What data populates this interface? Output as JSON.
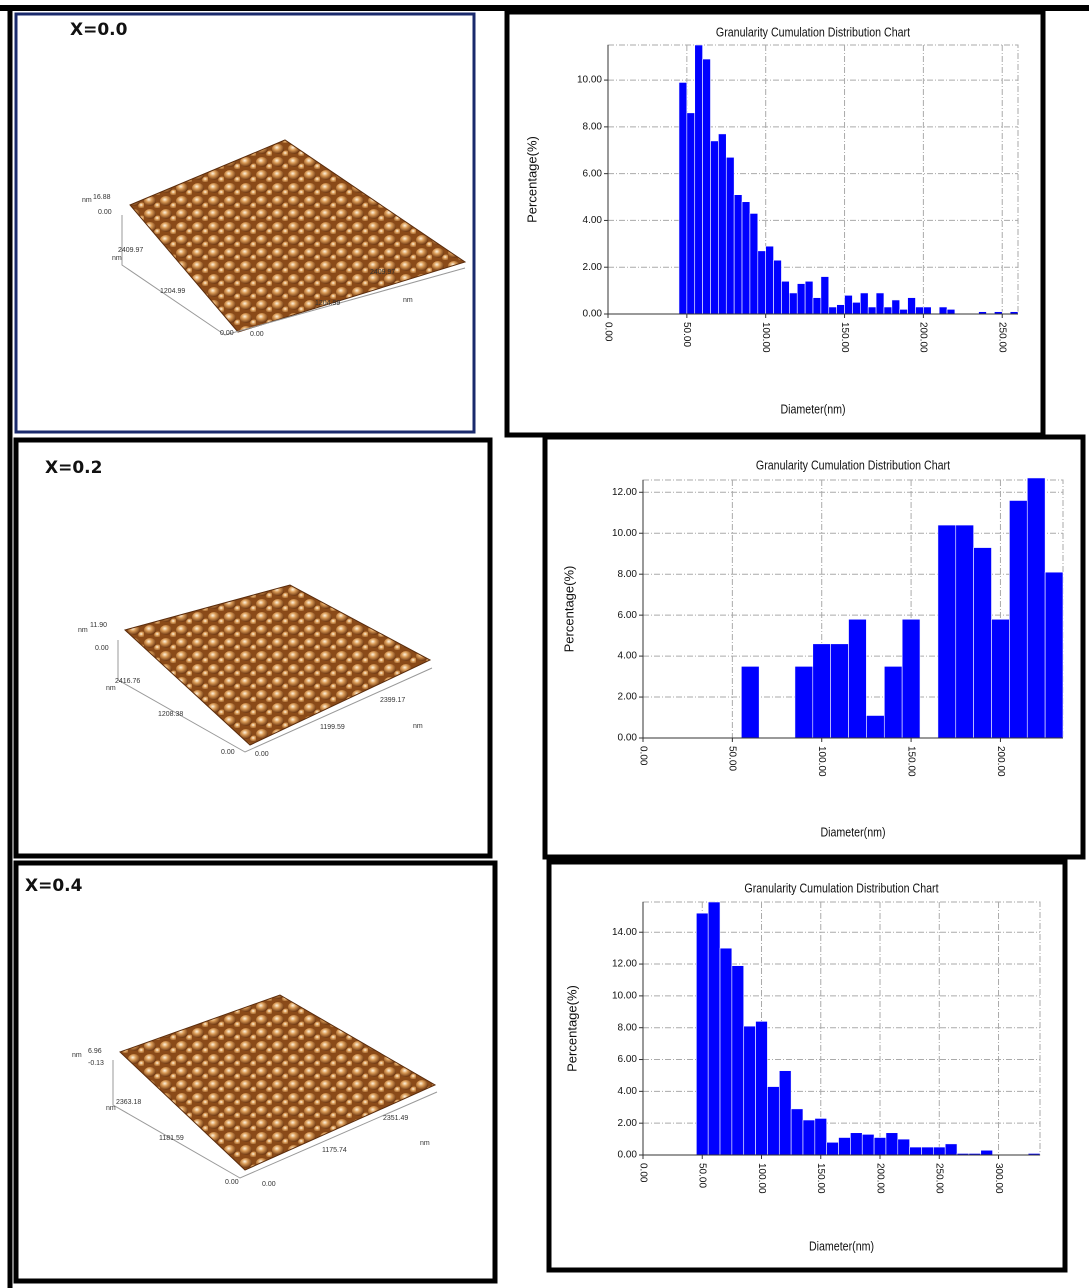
{
  "panels": [
    {
      "label": "X=0.0",
      "afm_labels": [
        "nm",
        "16.88",
        "0.00",
        "2409.97",
        "nm",
        "1204.99",
        "0.00",
        "0.00",
        "1204.99",
        "2409.97",
        "nm"
      ]
    },
    {
      "label": "X=0.2",
      "afm_labels": [
        "nm",
        "11.90",
        "0.00",
        "2416.76",
        "nm",
        "1208.38",
        "0.00",
        "0.00",
        "1199.59",
        "2399.17",
        "nm"
      ]
    },
    {
      "label": "X=0.4",
      "afm_labels": [
        "nm",
        "6.96",
        "-0.13",
        "2363.18",
        "nm",
        "1181.59",
        "0.00",
        "0.00",
        "1175.74",
        "2351.49",
        "nm"
      ]
    }
  ],
  "chart_data": [
    {
      "type": "histogram",
      "title": "Granularity Cumulation Distribution  Chart",
      "xlabel": "Diameter(nm)",
      "ylabel": "Percentage(%)",
      "color": "#0000ff",
      "grid": true,
      "bins": [
        45,
        50,
        55,
        60,
        65,
        70,
        75,
        80,
        85,
        90,
        95,
        100,
        105,
        110,
        115,
        120,
        125,
        130,
        135,
        140,
        145,
        150,
        155,
        160,
        165,
        170,
        175,
        180,
        185,
        190,
        195,
        200,
        205,
        210,
        215,
        220,
        225,
        230,
        235,
        240,
        245,
        250,
        255,
        260
      ],
      "values": [
        9.9,
        8.6,
        11.5,
        10.9,
        7.4,
        7.7,
        6.7,
        5.1,
        4.8,
        4.3,
        2.7,
        2.9,
        2.3,
        1.4,
        0.9,
        1.3,
        1.4,
        0.7,
        1.6,
        0.3,
        0.4,
        0.8,
        0.5,
        0.9,
        0.3,
        0.9,
        0.3,
        0.6,
        0.2,
        0.7,
        0.3,
        0.3,
        0,
        0.3,
        0.2,
        0,
        0,
        0,
        0.1,
        0,
        0.1,
        0,
        0.1
      ],
      "xlim": [
        0,
        260
      ],
      "ylim": [
        0,
        11.5
      ],
      "xticks": [
        {
          "value": 0,
          "label": "0.00"
        },
        {
          "value": 50,
          "label": "50.00"
        },
        {
          "value": 100,
          "label": "100.00"
        },
        {
          "value": 150,
          "label": "150.00"
        },
        {
          "value": 200,
          "label": "200.00"
        },
        {
          "value": 250,
          "label": "250.00"
        }
      ],
      "yticks": [
        {
          "value": 0,
          "label": "0.00"
        },
        {
          "value": 2,
          "label": "2.00"
        },
        {
          "value": 4,
          "label": "4.00"
        },
        {
          "value": 6,
          "label": "6.00"
        },
        {
          "value": 8,
          "label": "8.00"
        },
        {
          "value": 10,
          "label": "10.00"
        }
      ]
    },
    {
      "type": "histogram",
      "title": "Granularity Cumulation Distribution  Chart",
      "xlabel": "Diameter(nm)",
      "ylabel": "Percentage(%)",
      "color": "#0000ff",
      "grid": true,
      "bins": [
        55,
        65,
        75,
        85,
        95,
        105,
        115,
        125,
        135,
        145,
        155,
        165,
        175,
        185,
        195,
        205,
        215,
        225,
        235
      ],
      "values": [
        3.5,
        0,
        0,
        3.5,
        4.6,
        4.6,
        5.8,
        1.1,
        3.5,
        5.8,
        0,
        10.4,
        10.4,
        9.3,
        5.8,
        11.6,
        12.7,
        8.1
      ],
      "xlim": [
        0,
        235
      ],
      "ylim": [
        0,
        12.6
      ],
      "xticks": [
        {
          "value": 0,
          "label": "0.00"
        },
        {
          "value": 50,
          "label": "50.00"
        },
        {
          "value": 100,
          "label": "100.00"
        },
        {
          "value": 150,
          "label": "150.00"
        },
        {
          "value": 200,
          "label": "200.00"
        }
      ],
      "yticks": [
        {
          "value": 0,
          "label": "0.00"
        },
        {
          "value": 2,
          "label": "2.00"
        },
        {
          "value": 4,
          "label": "4.00"
        },
        {
          "value": 6,
          "label": "6.00"
        },
        {
          "value": 8,
          "label": "8.00"
        },
        {
          "value": 10,
          "label": "10.00"
        },
        {
          "value": 12,
          "label": "12.00"
        }
      ]
    },
    {
      "type": "histogram",
      "title": "Granularity Cumulation Distribution  Chart",
      "xlabel": "Diameter(nm)",
      "ylabel": "Percentage(%)",
      "color": "#0000ff",
      "grid": true,
      "bins": [
        45,
        55,
        65,
        75,
        85,
        95,
        105,
        115,
        125,
        135,
        145,
        155,
        165,
        175,
        185,
        195,
        205,
        215,
        225,
        235,
        245,
        255,
        265,
        275,
        285,
        295,
        305,
        315,
        325,
        335
      ],
      "values": [
        15.2,
        15.9,
        13.0,
        11.9,
        8.1,
        8.4,
        4.3,
        5.3,
        2.9,
        2.2,
        2.3,
        0.8,
        1.1,
        1.4,
        1.3,
        1.1,
        1.4,
        1.0,
        0.5,
        0.5,
        0.5,
        0.7,
        0.1,
        0.1,
        0.3,
        0,
        0,
        0,
        0.1
      ],
      "xlim": [
        0,
        335
      ],
      "ylim": [
        0,
        15.9
      ],
      "xticks": [
        {
          "value": 0,
          "label": "0.00"
        },
        {
          "value": 50,
          "label": "50.00"
        },
        {
          "value": 100,
          "label": "100.00"
        },
        {
          "value": 150,
          "label": "150.00"
        },
        {
          "value": 200,
          "label": "200.00"
        },
        {
          "value": 250,
          "label": "250.00"
        },
        {
          "value": 300,
          "label": "300.00"
        }
      ],
      "yticks": [
        {
          "value": 0,
          "label": "0.00"
        },
        {
          "value": 2,
          "label": "2.00"
        },
        {
          "value": 4,
          "label": "4.00"
        },
        {
          "value": 6,
          "label": "6.00"
        },
        {
          "value": 8,
          "label": "8.00"
        },
        {
          "value": 10,
          "label": "10.00"
        },
        {
          "value": 12,
          "label": "12.00"
        },
        {
          "value": 14,
          "label": "14.00"
        }
      ]
    }
  ]
}
